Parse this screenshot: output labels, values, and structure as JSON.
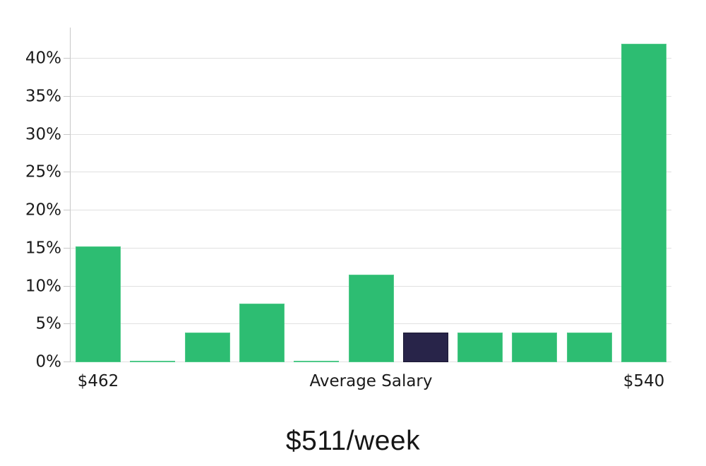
{
  "chart_data": {
    "type": "bar",
    "title": "",
    "caption": "$511/week",
    "values": [
      15.3,
      0.2,
      3.9,
      7.7,
      0.2,
      11.5,
      3.9,
      3.9,
      3.9,
      3.9,
      42.0
    ],
    "highlighted_index": 6,
    "highlight_meaning": "average-salary-bin",
    "bar_color": "#2dbd72",
    "bar_border_color": "#4fca89",
    "highlight_color": "#282449",
    "highlight_border_color": "#1a1833",
    "y_tick_values": [
      0,
      5,
      10,
      15,
      20,
      25,
      30,
      35,
      40
    ],
    "y_tick_labels": [
      "0%",
      "5%",
      "10%",
      "15%",
      "20%",
      "25%",
      "30%",
      "35%",
      "40%"
    ],
    "ylim": [
      0,
      44.1
    ],
    "x_labels": [
      {
        "text": "$462",
        "anchor": "bar",
        "index": 0
      },
      {
        "text": "Average Salary",
        "anchor": "center"
      },
      {
        "text": "$540",
        "anchor": "bar",
        "index": 10
      }
    ],
    "grid": true,
    "legend": false,
    "gridline_color": "#e0e0e0",
    "axis_color": "#c8c8c8",
    "text_color": "#1a1a1a"
  }
}
